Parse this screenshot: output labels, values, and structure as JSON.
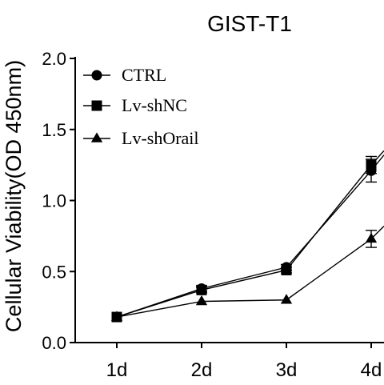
{
  "chart_data": {
    "type": "line",
    "title": "GIST-T1",
    "ylabel": "Cellular Viability(OD 450nm)",
    "xlabel": "",
    "categories": [
      "1d",
      "2d",
      "3d",
      "4d"
    ],
    "ylim": [
      0.0,
      2.0
    ],
    "yticks": [
      "0.0",
      "0.5",
      "1.0",
      "1.5",
      "2.0"
    ],
    "legend_position": "top-left",
    "series": [
      {
        "name": "CTRL",
        "marker": "circle",
        "values": [
          0.18,
          0.38,
          0.53,
          1.21
        ],
        "errors": [
          0.01,
          0.02,
          0.02,
          0.08
        ],
        "end_value": 1.32
      },
      {
        "name": "Lv-shNC",
        "marker": "square",
        "values": [
          0.18,
          0.37,
          0.51,
          1.25
        ],
        "errors": [
          0.01,
          0.02,
          0.02,
          0.06
        ],
        "end_value": 1.35
      },
      {
        "name": "Lv-shOrail",
        "marker": "triangle",
        "values": [
          0.18,
          0.29,
          0.3,
          0.73
        ],
        "errors": [
          0.01,
          0.01,
          0.01,
          0.06
        ],
        "end_value": 0.82
      }
    ]
  }
}
